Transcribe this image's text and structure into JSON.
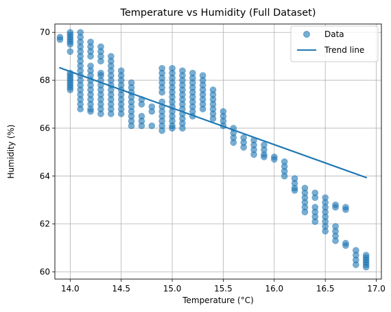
{
  "chart_data": {
    "type": "scatter",
    "title": "Temperature vs Humidity (Full Dataset)",
    "xlabel": "Temperature (°C)",
    "ylabel": "Humidity (%)",
    "xlim": [
      13.85,
      17.05
    ],
    "ylim": [
      59.7,
      70.35
    ],
    "x_ticks": [
      14.0,
      14.5,
      15.0,
      15.5,
      16.0,
      16.5,
      17.0
    ],
    "x_tick_labels": [
      "14.0",
      "14.5",
      "15.0",
      "15.5",
      "16.0",
      "16.5",
      "17.0"
    ],
    "y_ticks": [
      60,
      62,
      64,
      66,
      68,
      70
    ],
    "y_tick_labels": [
      "60",
      "62",
      "64",
      "66",
      "68",
      "70"
    ],
    "grid": true,
    "legend_position": "upper-right",
    "series": [
      {
        "name": "Data",
        "kind": "scatter",
        "color": "#1f77b4",
        "opacity": 0.6,
        "points": [
          [
            13.9,
            69.8
          ],
          [
            13.9,
            69.7
          ],
          [
            14.0,
            70.0
          ],
          [
            14.0,
            69.9
          ],
          [
            14.0,
            69.8
          ],
          [
            14.0,
            69.7
          ],
          [
            14.0,
            69.6
          ],
          [
            14.0,
            69.5
          ],
          [
            14.0,
            69.2
          ],
          [
            14.0,
            68.3
          ],
          [
            14.0,
            68.2
          ],
          [
            14.0,
            68.1
          ],
          [
            14.0,
            68.0
          ],
          [
            14.0,
            67.9
          ],
          [
            14.0,
            67.8
          ],
          [
            14.0,
            67.7
          ],
          [
            14.0,
            67.6
          ],
          [
            14.1,
            70.0
          ],
          [
            14.1,
            69.8
          ],
          [
            14.1,
            69.6
          ],
          [
            14.1,
            69.4
          ],
          [
            14.1,
            69.2
          ],
          [
            14.1,
            69.0
          ],
          [
            14.1,
            68.8
          ],
          [
            14.1,
            68.6
          ],
          [
            14.1,
            68.4
          ],
          [
            14.1,
            68.2
          ],
          [
            14.1,
            68.0
          ],
          [
            14.1,
            67.8
          ],
          [
            14.1,
            67.6
          ],
          [
            14.1,
            67.4
          ],
          [
            14.1,
            67.2
          ],
          [
            14.1,
            67.0
          ],
          [
            14.1,
            66.8
          ],
          [
            14.2,
            69.6
          ],
          [
            14.2,
            69.4
          ],
          [
            14.2,
            69.2
          ],
          [
            14.2,
            69.0
          ],
          [
            14.2,
            68.6
          ],
          [
            14.2,
            68.4
          ],
          [
            14.2,
            68.2
          ],
          [
            14.2,
            68.0
          ],
          [
            14.2,
            67.8
          ],
          [
            14.2,
            67.6
          ],
          [
            14.2,
            67.4
          ],
          [
            14.2,
            67.2
          ],
          [
            14.2,
            67.0
          ],
          [
            14.2,
            66.8
          ],
          [
            14.2,
            66.7
          ],
          [
            14.3,
            69.4
          ],
          [
            14.3,
            69.2
          ],
          [
            14.3,
            69.0
          ],
          [
            14.3,
            68.8
          ],
          [
            14.3,
            68.3
          ],
          [
            14.3,
            68.2
          ],
          [
            14.3,
            68.0
          ],
          [
            14.3,
            67.8
          ],
          [
            14.3,
            67.6
          ],
          [
            14.3,
            67.4
          ],
          [
            14.3,
            67.2
          ],
          [
            14.3,
            67.0
          ],
          [
            14.3,
            66.8
          ],
          [
            14.3,
            66.6
          ],
          [
            14.4,
            69.0
          ],
          [
            14.4,
            68.8
          ],
          [
            14.4,
            68.6
          ],
          [
            14.4,
            68.4
          ],
          [
            14.4,
            68.2
          ],
          [
            14.4,
            68.0
          ],
          [
            14.4,
            67.8
          ],
          [
            14.4,
            67.6
          ],
          [
            14.4,
            67.4
          ],
          [
            14.4,
            67.2
          ],
          [
            14.4,
            67.0
          ],
          [
            14.4,
            66.8
          ],
          [
            14.4,
            66.6
          ],
          [
            14.5,
            68.4
          ],
          [
            14.5,
            68.2
          ],
          [
            14.5,
            68.0
          ],
          [
            14.5,
            67.8
          ],
          [
            14.5,
            67.6
          ],
          [
            14.5,
            67.4
          ],
          [
            14.5,
            67.2
          ],
          [
            14.5,
            67.0
          ],
          [
            14.5,
            66.8
          ],
          [
            14.5,
            66.6
          ],
          [
            14.6,
            67.9
          ],
          [
            14.6,
            67.7
          ],
          [
            14.6,
            67.5
          ],
          [
            14.6,
            67.3
          ],
          [
            14.6,
            67.1
          ],
          [
            14.6,
            66.9
          ],
          [
            14.6,
            66.7
          ],
          [
            14.6,
            66.5
          ],
          [
            14.6,
            66.3
          ],
          [
            14.6,
            66.1
          ],
          [
            14.7,
            67.2
          ],
          [
            14.7,
            67.0
          ],
          [
            14.7,
            66.5
          ],
          [
            14.7,
            66.3
          ],
          [
            14.7,
            66.1
          ],
          [
            14.8,
            66.9
          ],
          [
            14.8,
            66.7
          ],
          [
            14.8,
            66.1
          ],
          [
            14.9,
            68.5
          ],
          [
            14.9,
            68.3
          ],
          [
            14.9,
            68.1
          ],
          [
            14.9,
            67.9
          ],
          [
            14.9,
            67.7
          ],
          [
            14.9,
            67.5
          ],
          [
            14.9,
            67.1
          ],
          [
            14.9,
            66.9
          ],
          [
            14.9,
            66.7
          ],
          [
            14.9,
            66.5
          ],
          [
            14.9,
            66.3
          ],
          [
            14.9,
            66.1
          ],
          [
            14.9,
            65.9
          ],
          [
            15.0,
            68.5
          ],
          [
            15.0,
            68.3
          ],
          [
            15.0,
            68.1
          ],
          [
            15.0,
            67.9
          ],
          [
            15.0,
            67.7
          ],
          [
            15.0,
            67.5
          ],
          [
            15.0,
            67.3
          ],
          [
            15.0,
            67.1
          ],
          [
            15.0,
            66.9
          ],
          [
            15.0,
            66.7
          ],
          [
            15.0,
            66.5
          ],
          [
            15.0,
            66.3
          ],
          [
            15.0,
            66.1
          ],
          [
            15.0,
            66.0
          ],
          [
            15.1,
            68.4
          ],
          [
            15.1,
            68.2
          ],
          [
            15.1,
            68.0
          ],
          [
            15.1,
            67.8
          ],
          [
            15.1,
            67.6
          ],
          [
            15.1,
            67.4
          ],
          [
            15.1,
            67.2
          ],
          [
            15.1,
            67.0
          ],
          [
            15.1,
            66.8
          ],
          [
            15.1,
            66.6
          ],
          [
            15.1,
            66.4
          ],
          [
            15.1,
            66.2
          ],
          [
            15.1,
            66.0
          ],
          [
            15.2,
            68.3
          ],
          [
            15.2,
            68.1
          ],
          [
            15.2,
            67.9
          ],
          [
            15.2,
            67.7
          ],
          [
            15.2,
            67.5
          ],
          [
            15.2,
            67.3
          ],
          [
            15.2,
            67.1
          ],
          [
            15.2,
            66.9
          ],
          [
            15.2,
            66.7
          ],
          [
            15.2,
            66.5
          ],
          [
            15.3,
            68.2
          ],
          [
            15.3,
            68.0
          ],
          [
            15.3,
            67.8
          ],
          [
            15.3,
            67.6
          ],
          [
            15.3,
            67.4
          ],
          [
            15.3,
            67.2
          ],
          [
            15.3,
            67.0
          ],
          [
            15.3,
            66.8
          ],
          [
            15.4,
            67.6
          ],
          [
            15.4,
            67.4
          ],
          [
            15.4,
            67.2
          ],
          [
            15.4,
            67.0
          ],
          [
            15.4,
            66.8
          ],
          [
            15.4,
            66.6
          ],
          [
            15.4,
            66.4
          ],
          [
            15.5,
            66.7
          ],
          [
            15.5,
            66.5
          ],
          [
            15.5,
            66.3
          ],
          [
            15.5,
            66.1
          ],
          [
            15.6,
            66.0
          ],
          [
            15.6,
            65.8
          ],
          [
            15.6,
            65.6
          ],
          [
            15.6,
            65.4
          ],
          [
            15.7,
            65.6
          ],
          [
            15.7,
            65.4
          ],
          [
            15.7,
            65.2
          ],
          [
            15.8,
            65.5
          ],
          [
            15.8,
            65.3
          ],
          [
            15.8,
            65.1
          ],
          [
            15.8,
            64.9
          ],
          [
            15.9,
            65.3
          ],
          [
            15.9,
            65.1
          ],
          [
            15.9,
            64.9
          ],
          [
            15.9,
            64.8
          ],
          [
            16.0,
            64.8
          ],
          [
            16.0,
            64.7
          ],
          [
            16.1,
            64.6
          ],
          [
            16.1,
            64.4
          ],
          [
            16.1,
            64.2
          ],
          [
            16.1,
            64.0
          ],
          [
            16.2,
            63.9
          ],
          [
            16.2,
            63.7
          ],
          [
            16.2,
            63.5
          ],
          [
            16.2,
            63.4
          ],
          [
            16.3,
            63.5
          ],
          [
            16.3,
            63.3
          ],
          [
            16.3,
            63.1
          ],
          [
            16.3,
            62.9
          ],
          [
            16.3,
            62.7
          ],
          [
            16.3,
            62.5
          ],
          [
            16.4,
            63.3
          ],
          [
            16.4,
            63.1
          ],
          [
            16.4,
            62.7
          ],
          [
            16.4,
            62.5
          ],
          [
            16.4,
            62.3
          ],
          [
            16.4,
            62.1
          ],
          [
            16.5,
            63.1
          ],
          [
            16.5,
            62.9
          ],
          [
            16.5,
            62.7
          ],
          [
            16.5,
            62.5
          ],
          [
            16.5,
            62.3
          ],
          [
            16.5,
            62.1
          ],
          [
            16.5,
            61.9
          ],
          [
            16.5,
            61.7
          ],
          [
            16.6,
            62.8
          ],
          [
            16.6,
            62.7
          ],
          [
            16.6,
            61.9
          ],
          [
            16.6,
            61.7
          ],
          [
            16.6,
            61.5
          ],
          [
            16.6,
            61.3
          ],
          [
            16.7,
            62.7
          ],
          [
            16.7,
            62.6
          ],
          [
            16.7,
            61.2
          ],
          [
            16.7,
            61.1
          ],
          [
            16.8,
            60.9
          ],
          [
            16.8,
            60.7
          ],
          [
            16.8,
            60.5
          ],
          [
            16.8,
            60.3
          ],
          [
            16.9,
            60.7
          ],
          [
            16.9,
            60.6
          ],
          [
            16.9,
            60.5
          ],
          [
            16.9,
            60.4
          ],
          [
            16.9,
            60.3
          ],
          [
            16.9,
            60.2
          ]
        ]
      },
      {
        "name": "Trend line",
        "kind": "line",
        "color": "#1f77b4",
        "x": [
          13.9,
          16.9
        ],
        "y": [
          68.52,
          63.94
        ]
      }
    ]
  }
}
